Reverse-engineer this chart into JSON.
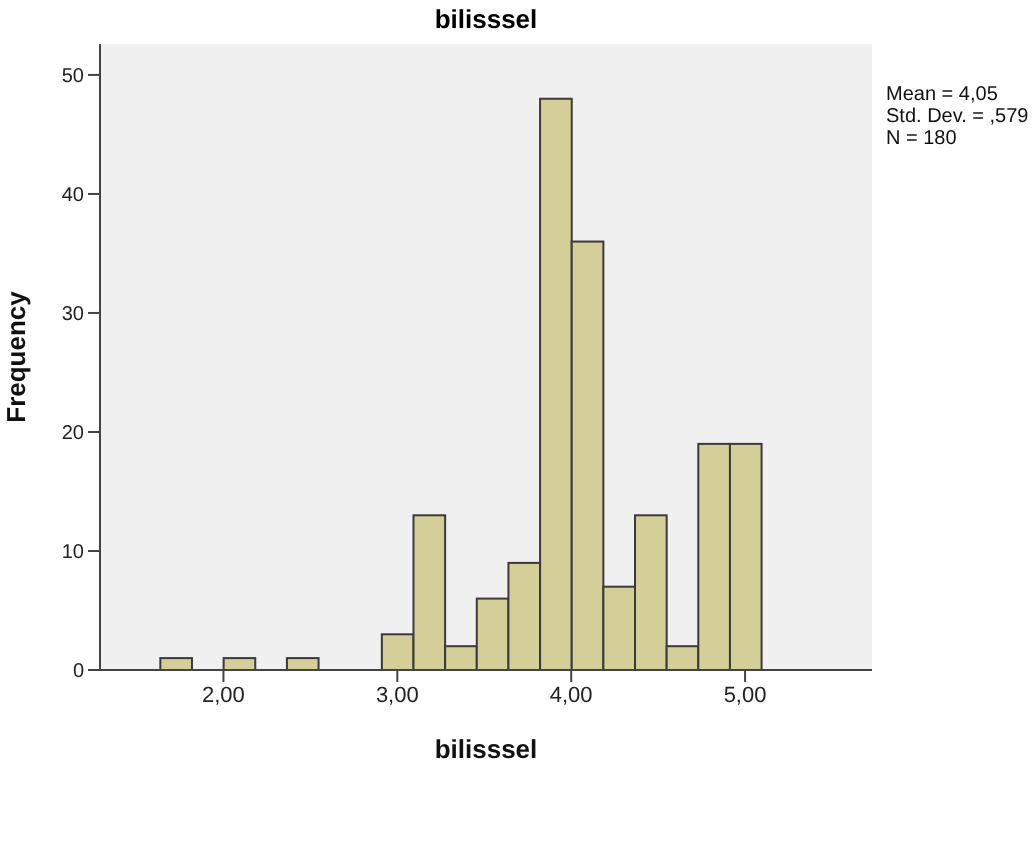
{
  "chart_data": {
    "type": "histogram",
    "title": "bilisssel",
    "xlabel": "bilisssel",
    "ylabel": "Frequency",
    "bins": [
      1.636,
      1.818,
      2.0,
      2.182,
      2.364,
      2.546,
      2.728,
      2.91,
      3.092,
      3.274,
      3.456,
      3.638,
      3.82,
      4.002,
      4.184,
      4.366,
      4.548,
      4.73,
      4.912,
      5.094
    ],
    "values": [
      1,
      0,
      1,
      0,
      1,
      0,
      0,
      3,
      13,
      2,
      6,
      9,
      48,
      36,
      7,
      13,
      2,
      19,
      19
    ],
    "color": "#d4cf98",
    "xlim": [
      1.29,
      5.73
    ],
    "xticks": [
      {
        "value": 2,
        "label": "2,00"
      },
      {
        "value": 3,
        "label": "3,00"
      },
      {
        "value": 4,
        "label": "4,00"
      },
      {
        "value": 5,
        "label": "5,00"
      }
    ],
    "ylim": [
      0,
      52.6
    ],
    "yticks": [
      0,
      10,
      20,
      30,
      40,
      50
    ],
    "annotations": [
      "Mean = 4,05",
      "Std. Dev. = ,579",
      "N = 180"
    ],
    "grid": false
  }
}
